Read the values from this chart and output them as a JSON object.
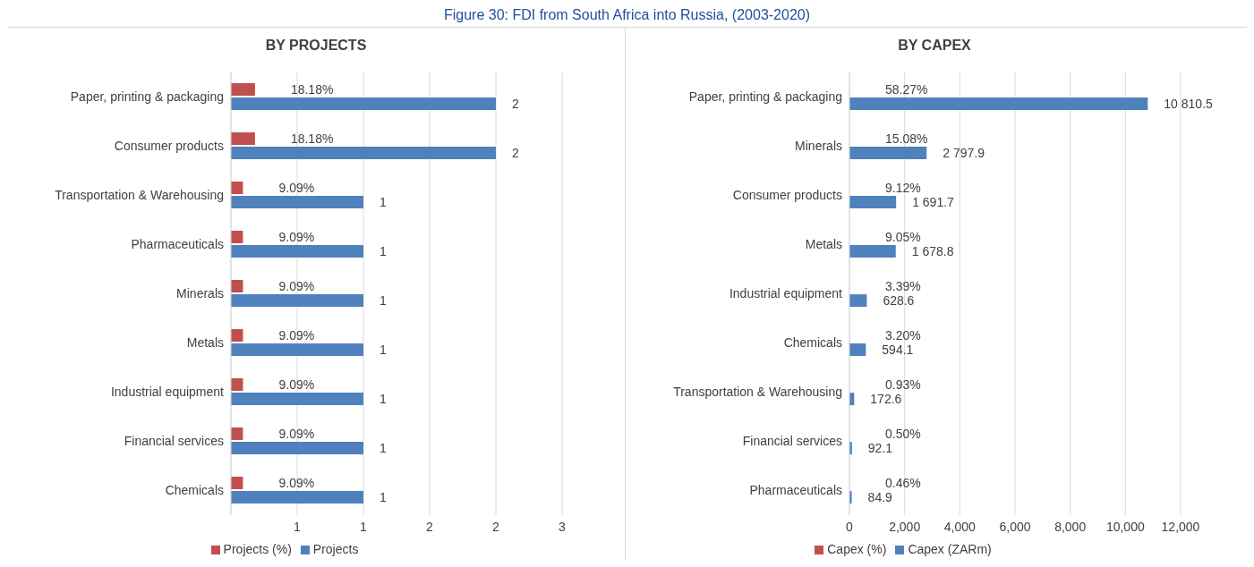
{
  "chart_data": [
    {
      "type": "bar",
      "orientation": "horizontal",
      "title": "BY PROJECTS",
      "annotations": [
        "Figure 30: FDI from South Africa into Russia, (2003-2020)"
      ],
      "categories": [
        "Paper, printing & packaging",
        "Consumer products",
        "Transportation & Warehousing",
        "Pharmaceuticals",
        "Minerals",
        "Metals",
        "Industrial equipment",
        "Financial services",
        "Chemicals"
      ],
      "series": [
        {
          "name": "Projects (%)",
          "color": "#c0504d",
          "values": [
            0.1818,
            0.1818,
            0.0909,
            0.0909,
            0.0909,
            0.0909,
            0.0909,
            0.0909,
            0.0909
          ],
          "value_labels": [
            "18.18%",
            "18.18%",
            "9.09%",
            "9.09%",
            "9.09%",
            "9.09%",
            "9.09%",
            "9.09%",
            "9.09%"
          ]
        },
        {
          "name": "Projects",
          "color": "#4f81bd",
          "values": [
            2,
            2,
            1,
            1,
            1,
            1,
            1,
            1,
            1
          ],
          "value_labels": [
            "2",
            "2",
            "1",
            "1",
            "1",
            "1",
            "1",
            "1",
            "1"
          ]
        }
      ],
      "xlim": [
        0,
        2.5
      ],
      "xticks": [
        {
          "value": 0.5,
          "label": "1"
        },
        {
          "value": 1,
          "label": "1"
        },
        {
          "value": 1.5,
          "label": "2"
        },
        {
          "value": 2,
          "label": "2"
        },
        {
          "value": 2.5,
          "label": "3"
        }
      ],
      "grid": "x",
      "legend": "bottom"
    },
    {
      "type": "bar",
      "orientation": "horizontal",
      "title": "BY CAPEX",
      "categories": [
        "Paper, printing & packaging",
        "Minerals",
        "Consumer products",
        "Metals",
        "Industrial equipment",
        "Chemicals",
        "Transportation & Warehousing",
        "Financial services",
        "Pharmaceuticals"
      ],
      "series": [
        {
          "name": "Capex (%)",
          "color": "#c0504d",
          "values": [
            0.5827,
            0.1508,
            0.0912,
            0.0905,
            0.0339,
            0.032,
            0.0093,
            0.005,
            0.0046
          ],
          "value_labels": [
            "58.27%",
            "15.08%",
            "9.12%",
            "9.05%",
            "3.39%",
            "3.20%",
            "0.93%",
            "0.50%",
            "0.46%"
          ]
        },
        {
          "name": "Capex (ZARm)",
          "color": "#4f81bd",
          "values": [
            10810.5,
            2797.9,
            1691.7,
            1678.8,
            628.6,
            594.1,
            172.6,
            92.1,
            84.9
          ],
          "value_labels": [
            "10 810.5",
            "2 797.9",
            "1 691.7",
            "1 678.8",
            "628.6",
            "594.1",
            "172.6",
            "92.1",
            "84.9"
          ]
        }
      ],
      "xlim": [
        0,
        12000
      ],
      "xticks": [
        {
          "value": 0,
          "label": "0"
        },
        {
          "value": 2000,
          "label": "2,000"
        },
        {
          "value": 4000,
          "label": "4,000"
        },
        {
          "value": 6000,
          "label": "6,000"
        },
        {
          "value": 8000,
          "label": "8,000"
        },
        {
          "value": 10000,
          "label": "10,000"
        },
        {
          "value": 12000,
          "label": "12,000"
        }
      ],
      "grid": "x",
      "legend": "bottom"
    }
  ]
}
